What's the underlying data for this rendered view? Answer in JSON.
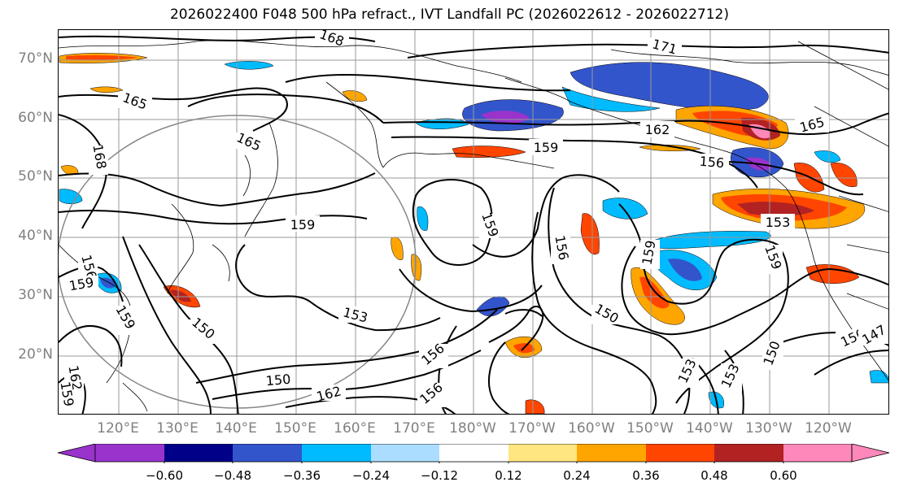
{
  "title": "2026022400 F048 500 hPa refract., IVT Landfall PC (2026022612 - 2026022712)",
  "lat_labels": [
    "70°N",
    "60°N",
    "50°N",
    "40°N",
    "30°N",
    "20°N"
  ],
  "lon_labels": [
    "120°E",
    "130°E",
    "140°E",
    "150°E",
    "160°E",
    "170°E",
    "180°W",
    "170°W",
    "160°W",
    "150°W",
    "140°W",
    "130°W",
    "120°W"
  ],
  "contour_labels": [
    {
      "text": "168"
    },
    {
      "text": "171"
    },
    {
      "text": "165"
    },
    {
      "text": "165"
    },
    {
      "text": "165"
    },
    {
      "text": "168"
    },
    {
      "text": "162"
    },
    {
      "text": "159"
    },
    {
      "text": "156"
    },
    {
      "text": "159"
    },
    {
      "text": "159"
    },
    {
      "text": "153"
    },
    {
      "text": "156"
    },
    {
      "text": "159"
    },
    {
      "text": "159"
    },
    {
      "text": "156"
    },
    {
      "text": "159"
    },
    {
      "text": "159"
    },
    {
      "text": "162"
    },
    {
      "text": "150"
    },
    {
      "text": "153"
    },
    {
      "text": "150"
    },
    {
      "text": "156"
    },
    {
      "text": "150"
    },
    {
      "text": "156"
    },
    {
      "text": "162"
    },
    {
      "text": "150"
    },
    {
      "text": "153"
    },
    {
      "text": "153"
    },
    {
      "text": "150"
    },
    {
      "text": "147"
    },
    {
      "text": "159"
    }
  ],
  "colorbar": {
    "colors": [
      "#9933cc",
      "#000088",
      "#3355cc",
      "#00bbff",
      "#aaddff",
      "#ffffff",
      "#ffe680",
      "#ffa500",
      "#ff4500",
      "#b22222",
      "#ff88bb"
    ],
    "tick_labels": [
      "−0.60",
      "−0.48",
      "−0.36",
      "−0.24",
      "−0.12",
      "0.12",
      "0.24",
      "0.36",
      "0.48",
      "0.60"
    ]
  }
}
